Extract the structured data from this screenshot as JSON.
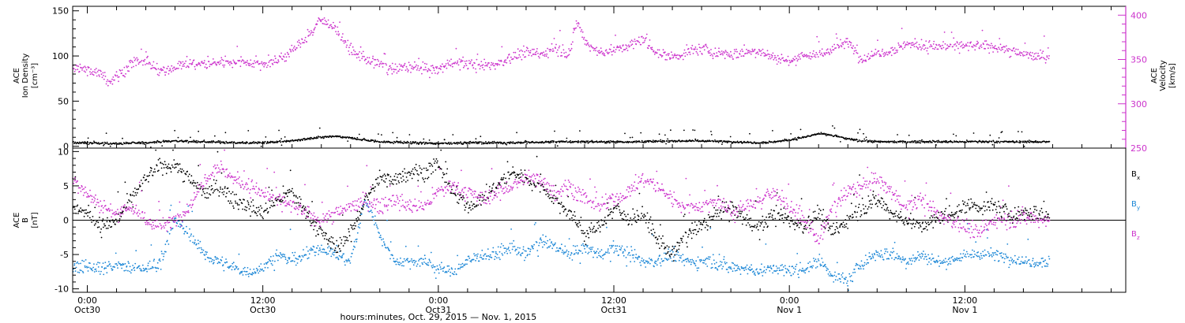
{
  "colors": {
    "axis": "#000000",
    "density": "#000000",
    "velocity": "#cc33cc",
    "bx": "#000000",
    "by": "#1a86d6",
    "bz": "#cc33cc"
  },
  "time_axis": {
    "xlabel": "hours:minutes, Oct. 29, 2015 — Nov.  1, 2015",
    "range_hours": [
      -1.0,
      71.0
    ],
    "ticks": [
      {
        "t": 0,
        "time": "0:00",
        "date": "Oct30"
      },
      {
        "t": 12,
        "time": "12:00",
        "date": "Oct30"
      },
      {
        "t": 24,
        "time": "0:00",
        "date": "Oct31"
      },
      {
        "t": 36,
        "time": "12:00",
        "date": "Oct31"
      },
      {
        "t": 48,
        "time": "0:00",
        "date": "Nov 1"
      },
      {
        "t": 60,
        "time": "12:00",
        "date": "Nov 1"
      }
    ],
    "data_end_hours": 65.8
  },
  "chart_data": [
    {
      "type": "scatter",
      "panel": "top",
      "ylabel_left": [
        "ACE",
        "Ion Density",
        "[cm⁻³]"
      ],
      "ylabel_right": [
        "ACE",
        "Velocity",
        "[km/s]"
      ],
      "ylim_left": [
        -2,
        155
      ],
      "ylim_right": [
        250,
        410
      ],
      "yticks_left": [
        0,
        50,
        100,
        150
      ],
      "yticks_right": [
        250,
        300,
        350,
        400
      ],
      "series": [
        {
          "name": "Ion Density",
          "axis": "left",
          "x": [
            -1,
            2,
            4,
            5,
            6,
            8,
            10,
            12,
            13,
            14,
            15,
            16,
            17,
            18,
            19,
            20,
            22,
            24,
            26,
            28,
            30,
            32,
            34,
            36,
            38,
            40,
            42,
            44,
            46,
            47,
            48,
            49,
            50,
            51,
            52,
            53,
            54,
            56,
            58,
            60,
            62,
            64,
            65.8
          ],
          "y": [
            4,
            3,
            4,
            5,
            6,
            5,
            4,
            4,
            5,
            6,
            8,
            10,
            11,
            9,
            7,
            5,
            4,
            3,
            4,
            4,
            4,
            5,
            5,
            5,
            5,
            6,
            6,
            5,
            4,
            5,
            7,
            10,
            14,
            12,
            8,
            6,
            5,
            5,
            5,
            5,
            5,
            5,
            5
          ]
        },
        {
          "name": "Velocity",
          "axis": "right",
          "x": [
            -1,
            0,
            1,
            1.5,
            2,
            3,
            4,
            5,
            6,
            7,
            8,
            10,
            12,
            13,
            14,
            15,
            16,
            17,
            18,
            19,
            20,
            21,
            22,
            23,
            24,
            25,
            26,
            27,
            28,
            29,
            30,
            31,
            32,
            33,
            33.5,
            34,
            35,
            36,
            37,
            38,
            39,
            40,
            41,
            42,
            43,
            44,
            45,
            46,
            47,
            48,
            49,
            50,
            51,
            52,
            53,
            54,
            55,
            56,
            57,
            58,
            59,
            60,
            61,
            62,
            63,
            64,
            65,
            65.8
          ],
          "y": [
            340,
            338,
            335,
            325,
            330,
            345,
            348,
            335,
            342,
            345,
            345,
            348,
            345,
            348,
            360,
            375,
            395,
            385,
            360,
            350,
            345,
            338,
            342,
            340,
            338,
            348,
            345,
            342,
            345,
            352,
            358,
            355,
            362,
            358,
            395,
            370,
            358,
            360,
            365,
            372,
            358,
            352,
            358,
            362,
            358,
            355,
            358,
            360,
            352,
            348,
            355,
            355,
            362,
            370,
            350,
            358,
            360,
            368,
            365,
            365,
            365,
            365,
            365,
            365,
            360,
            356,
            354,
            354
          ]
        }
      ]
    },
    {
      "type": "scatter",
      "panel": "bottom",
      "ylabel_left": [
        "ACE",
        "B",
        "[nT]"
      ],
      "ylim": [
        -10.5,
        10.5
      ],
      "yticks": [
        -10,
        -5,
        0,
        5,
        10
      ],
      "zero_line": true,
      "legend_position": "right",
      "series": [
        {
          "name": "Bx",
          "label_main": "B",
          "label_sub": "x",
          "x": [
            -1,
            0,
            1,
            2,
            3,
            4,
            5,
            6,
            7,
            8,
            9,
            10,
            11,
            12,
            13,
            14,
            15,
            16,
            17,
            18,
            19,
            20,
            21,
            22,
            23,
            24,
            25,
            26,
            27,
            28,
            29,
            30,
            31,
            32,
            33,
            34,
            35,
            36,
            37,
            38,
            39,
            40,
            41,
            42,
            43,
            44,
            45,
            46,
            47,
            48,
            49,
            50,
            51,
            52,
            53,
            54,
            55,
            56,
            57,
            58,
            59,
            60,
            61,
            62,
            63,
            64,
            65,
            65.8
          ],
          "y": [
            2,
            1,
            -1,
            0,
            3,
            6,
            8,
            8,
            6,
            4,
            5,
            3,
            2,
            1,
            3,
            4,
            1,
            -2,
            -4,
            -2,
            3,
            6,
            6,
            7,
            7,
            8,
            4,
            2,
            3,
            5,
            7,
            6,
            5,
            3,
            1,
            -2,
            -1,
            2,
            0,
            1,
            -3,
            -5,
            -2,
            -1,
            1,
            2,
            0,
            -1,
            1,
            0,
            -1,
            1,
            -2,
            0,
            2,
            3,
            1,
            0,
            -1,
            0,
            1,
            2,
            2,
            2,
            1,
            1,
            1,
            0.5
          ]
        },
        {
          "name": "By",
          "label_main": "B",
          "label_sub": "y",
          "x": [
            -1,
            0,
            1,
            2,
            3,
            4,
            5,
            6,
            7,
            8,
            9,
            10,
            11,
            12,
            13,
            14,
            15,
            16,
            17,
            18,
            19,
            20,
            21,
            22,
            23,
            24,
            25,
            26,
            27,
            28,
            29,
            30,
            31,
            32,
            33,
            34,
            35,
            36,
            37,
            38,
            39,
            40,
            41,
            42,
            43,
            44,
            45,
            46,
            47,
            48,
            49,
            50,
            51,
            52,
            53,
            54,
            55,
            56,
            57,
            58,
            59,
            60,
            61,
            62,
            63,
            64,
            65,
            65.8
          ],
          "y": [
            -7,
            -6.5,
            -7,
            -6.5,
            -7,
            -7,
            -6,
            0,
            -2,
            -5,
            -6,
            -7,
            -7.5,
            -7,
            -5,
            -6,
            -5,
            -4,
            -5,
            -6,
            3,
            -2,
            -6,
            -6,
            -6,
            -7,
            -7.5,
            -6,
            -5,
            -5,
            -4,
            -5,
            -3,
            -4,
            -5,
            -4,
            -5,
            -4,
            -5,
            -6,
            -6,
            -5,
            -6,
            -6,
            -6,
            -7,
            -7,
            -7.5,
            -7,
            -7.5,
            -7,
            -6,
            -8,
            -9,
            -6,
            -5,
            -5,
            -6,
            -5,
            -6,
            -6,
            -5,
            -5,
            -5,
            -5.5,
            -6,
            -6,
            -6
          ]
        },
        {
          "name": "Bz",
          "label_main": "B",
          "label_sub": "z",
          "x": [
            -1,
            0,
            1,
            2,
            3,
            4,
            5,
            6,
            7,
            8,
            9,
            10,
            11,
            12,
            13,
            14,
            15,
            16,
            17,
            18,
            19,
            20,
            21,
            22,
            23,
            24,
            25,
            26,
            27,
            28,
            29,
            30,
            31,
            32,
            33,
            34,
            35,
            36,
            37,
            38,
            39,
            40,
            41,
            42,
            43,
            44,
            45,
            46,
            47,
            48,
            49,
            50,
            51,
            52,
            53,
            54,
            55,
            56,
            57,
            58,
            59,
            60,
            61,
            62,
            63,
            64,
            65,
            65.8
          ],
          "y": [
            6,
            4,
            2,
            1,
            2,
            0,
            -1,
            0,
            2,
            6,
            8,
            6,
            5,
            4,
            3,
            2,
            1,
            0,
            1,
            2,
            3,
            2,
            3,
            2,
            2,
            4,
            5,
            4,
            3,
            4,
            5,
            6,
            6,
            4,
            5,
            3,
            2,
            3,
            4,
            6,
            5,
            3,
            2,
            2,
            3,
            1,
            2,
            3,
            4,
            2,
            0,
            -3,
            2,
            4,
            5,
            6,
            4,
            2,
            3,
            1,
            0,
            -1,
            -2,
            0,
            0,
            0.5,
            0,
            0
          ]
        }
      ]
    }
  ]
}
